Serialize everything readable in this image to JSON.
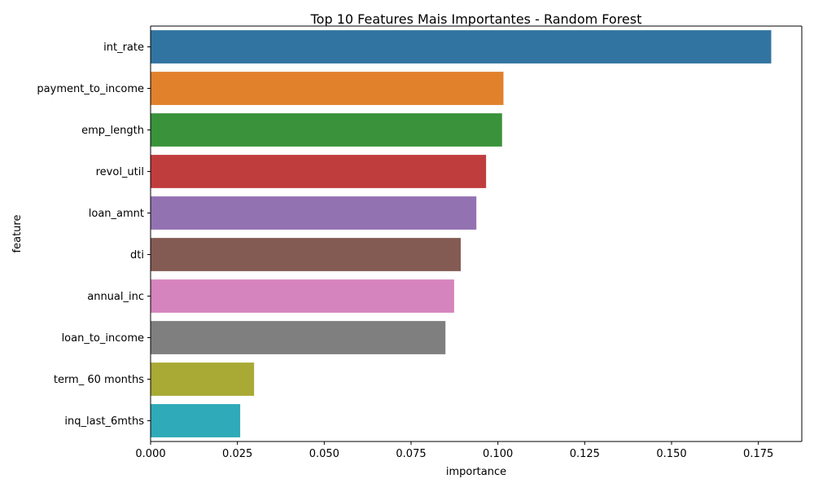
{
  "chart_data": {
    "type": "bar",
    "orientation": "horizontal",
    "title": "Top 10 Features Mais Importantes - Random Forest",
    "xlabel": "importance",
    "ylabel": "feature",
    "xlim": [
      0,
      0.1875
    ],
    "xticks": [
      0.0,
      0.025,
      0.05,
      0.075,
      0.1,
      0.125,
      0.15,
      0.175
    ],
    "xtick_labels": [
      "0.000",
      "0.025",
      "0.050",
      "0.075",
      "0.100",
      "0.125",
      "0.150",
      "0.175"
    ],
    "grid": false,
    "categories": [
      "int_rate",
      "payment_to_income",
      "emp_length",
      "revol_util",
      "loan_amnt",
      "dti",
      "annual_inc",
      "loan_to_income",
      "term_ 60 months",
      "inq_last_6mths"
    ],
    "values": [
      0.1787,
      0.1016,
      0.1012,
      0.0966,
      0.0938,
      0.0893,
      0.0874,
      0.0849,
      0.0298,
      0.0258
    ],
    "colors": [
      "#3274a1",
      "#e1812c",
      "#3a923a",
      "#c03d3e",
      "#9372b2",
      "#845b53",
      "#d684bd",
      "#7f7f7f",
      "#a9aa35",
      "#2eaab8"
    ]
  }
}
